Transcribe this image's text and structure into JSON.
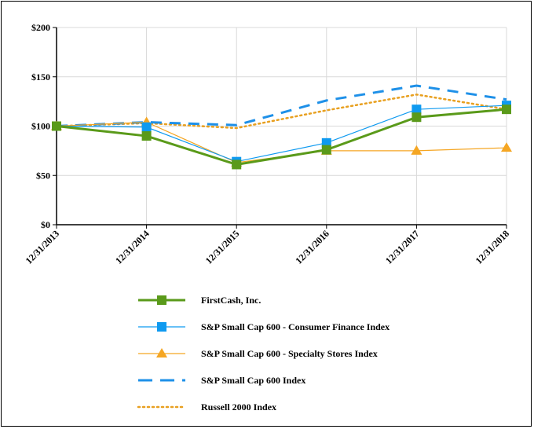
{
  "chart_data": {
    "type": "line",
    "categories": [
      "12/31/2013",
      "12/31/2014",
      "12/31/2015",
      "12/31/2016",
      "12/31/2017",
      "12/31/2018"
    ],
    "ylim": [
      0,
      200
    ],
    "yticks": [
      0,
      50,
      100,
      150,
      200
    ],
    "ytick_labels": [
      "$0",
      "$50",
      "$100",
      "$150",
      "$200"
    ],
    "grid": true,
    "legend_position": "bottom",
    "series": [
      {
        "name": "FirstCash, Inc.",
        "values": [
          100,
          90,
          61,
          76,
          109,
          117
        ],
        "color": "#5a9a1a",
        "marker": "square",
        "style": "solid-thick"
      },
      {
        "name": "S&P Small Cap 600 - Consumer Finance Index",
        "values": [
          100,
          99,
          64,
          83,
          117,
          121
        ],
        "color": "#0f9af0",
        "marker": "square",
        "style": "solid-thin"
      },
      {
        "name": "S&P Small Cap 600 - Specialty Stores Index",
        "values": [
          100,
          104,
          63,
          75,
          75,
          78
        ],
        "color": "#f5a623",
        "marker": "triangle",
        "style": "solid-thin"
      },
      {
        "name": "S&P Small Cap 600 Index",
        "values": [
          100,
          104,
          101,
          126,
          141,
          127
        ],
        "color": "#1e90e8",
        "marker": "none",
        "style": "dashed"
      },
      {
        "name": "Russell 2000 Index",
        "values": [
          100,
          103,
          98,
          116,
          132,
          117
        ],
        "color": "#e8a020",
        "marker": "none",
        "style": "dotted"
      }
    ]
  }
}
